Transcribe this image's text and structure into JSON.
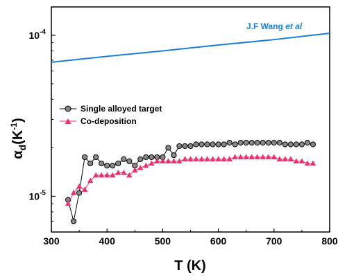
{
  "chart_data": {
    "type": "line",
    "xlabel": "T (K)",
    "ylabel": "αd(K-1)",
    "y_scale": "log",
    "xlim": [
      300,
      800
    ],
    "ylim": [
      6e-06,
      0.00015
    ],
    "x_ticks": [
      300,
      400,
      500,
      600,
      700,
      800
    ],
    "x_tick_labels": [
      "300",
      "400",
      "500",
      "600",
      "700",
      "800"
    ],
    "y_ticks": [
      1e-05,
      0.0001
    ],
    "y_tick_labels": [
      "10-5",
      "10-4"
    ],
    "legend_position": "center-left",
    "series": [
      {
        "name": "Single alloyed target",
        "marker": "circle",
        "color": "#000000",
        "marker_fill": "#888888",
        "x": [
          330,
          340,
          350,
          360,
          370,
          380,
          390,
          400,
          410,
          420,
          430,
          440,
          450,
          460,
          470,
          480,
          490,
          500,
          510,
          520,
          530,
          540,
          550,
          560,
          570,
          580,
          590,
          600,
          610,
          620,
          630,
          640,
          650,
          660,
          670,
          680,
          690,
          700,
          710,
          720,
          730,
          740,
          750,
          760,
          770
        ],
        "y": [
          9.5e-06,
          7e-06,
          1.05e-05,
          1.75e-05,
          1.6e-05,
          1.75e-05,
          1.6e-05,
          1.55e-05,
          1.55e-05,
          1.6e-05,
          1.7e-05,
          1.65e-05,
          1.55e-05,
          1.7e-05,
          1.75e-05,
          1.75e-05,
          1.75e-05,
          1.75e-05,
          2e-05,
          1.8e-05,
          2.05e-05,
          2.05e-05,
          2.05e-05,
          2.1e-05,
          2.1e-05,
          2.1e-05,
          2.1e-05,
          2.1e-05,
          2.1e-05,
          2.15e-05,
          2.1e-05,
          2.15e-05,
          2.15e-05,
          2.15e-05,
          2.15e-05,
          2.15e-05,
          2.15e-05,
          2.15e-05,
          2.15e-05,
          2.1e-05,
          2.1e-05,
          2.1e-05,
          2.1e-05,
          2.15e-05,
          2.1e-05
        ]
      },
      {
        "name": "Co-deposition",
        "marker": "triangle",
        "color": "#e8336b",
        "marker_fill": "#e8336b",
        "x": [
          330,
          340,
          350,
          360,
          370,
          380,
          390,
          400,
          410,
          420,
          430,
          440,
          450,
          460,
          470,
          480,
          490,
          500,
          510,
          520,
          530,
          540,
          550,
          560,
          570,
          580,
          590,
          600,
          610,
          620,
          630,
          640,
          650,
          660,
          670,
          680,
          690,
          700,
          710,
          720,
          730,
          740,
          750,
          760,
          770
        ],
        "y": [
          9e-06,
          1.05e-05,
          1.15e-05,
          1.1e-05,
          1.25e-05,
          1.35e-05,
          1.35e-05,
          1.35e-05,
          1.35e-05,
          1.4e-05,
          1.4e-05,
          1.35e-05,
          1.45e-05,
          1.5e-05,
          1.55e-05,
          1.6e-05,
          1.65e-05,
          1.65e-05,
          1.65e-05,
          1.65e-05,
          1.65e-05,
          1.7e-05,
          1.7e-05,
          1.7e-05,
          1.7e-05,
          1.7e-05,
          1.7e-05,
          1.7e-05,
          1.7e-05,
          1.7e-05,
          1.75e-05,
          1.75e-05,
          1.75e-05,
          1.75e-05,
          1.75e-05,
          1.75e-05,
          1.75e-05,
          1.75e-05,
          1.7e-05,
          1.7e-05,
          1.7e-05,
          1.65e-05,
          1.65e-05,
          1.6e-05,
          1.6e-05
        ]
      },
      {
        "name": "J.F Wang et al",
        "marker": "none",
        "color": "#1a7fd4",
        "x": [
          300,
          400,
          500,
          600,
          700,
          800
        ],
        "y": [
          6.8e-05,
          7.4e-05,
          8e-05,
          8.7e-05,
          9.4e-05,
          0.000103
        ]
      }
    ],
    "annotation": {
      "text_main": "J.F Wang ",
      "text_italic": "et al",
      "color": "#1a7fd4"
    },
    "ylabel_parts": {
      "symbol": "α",
      "subscript": "d",
      "open": "(K",
      "superscript": "-1",
      "close": ")"
    },
    "y_tick_parts": [
      {
        "base": "10",
        "exp": "-5"
      },
      {
        "base": "10",
        "exp": "-4"
      }
    ]
  }
}
